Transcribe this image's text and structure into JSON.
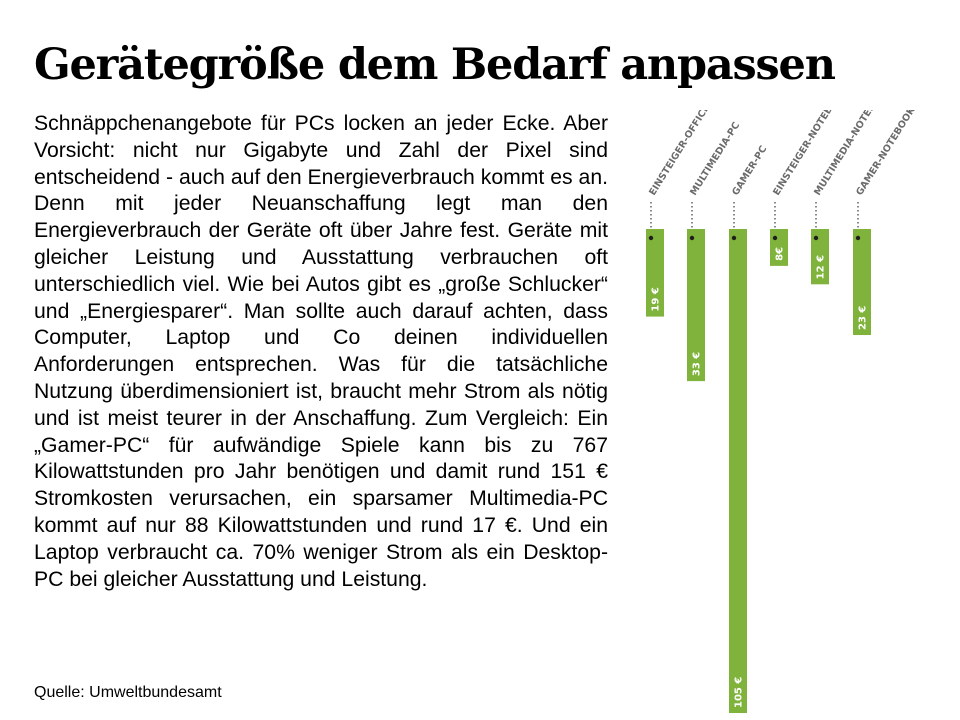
{
  "slide": {
    "title": "Gerätegröße dem Bedarf anpassen",
    "body": "Schnäppchenangebote für PCs locken an jeder Ecke. Aber Vorsicht: nicht nur Gigabyte und Zahl der Pixel sind entscheidend - auch auf den Energieverbrauch kommt es an. Denn mit jeder Neuanschaffung legt man den Energieverbrauch der Geräte oft über Jahre fest. Geräte mit gleicher Leistung und Ausstattung verbrauchen oft unterschiedlich viel. Wie bei Autos gibt es „große Schlucker“ und „Energiesparer“. Man sollte auch darauf achten, dass Computer, Laptop und Co deinen individuellen Anforderungen entsprechen. Was für die tatsächliche Nutzung überdimensioniert ist, braucht mehr Strom als nötig und ist meist teurer in der Anschaffung. Zum Vergleich: Ein „Gamer-PC“ für aufwändige Spiele kann bis zu 767 Kilowattstunden pro Jahr benötigen und damit rund 151 € Stromkosten verursachen, ein sparsamer Multimedia-PC kommt auf nur 88 Kilowattstunden und rund 17 €. Und ein Laptop verbraucht ca. 70% weniger Strom als ein Desktop-PC bei gleicher Ausstattung und Leistung.",
    "source": "Quelle: Umweltbundesamt"
  },
  "chart_data": {
    "type": "bar",
    "orientation": "vertical-down",
    "categories": [
      "EINSTEIGER-OFFICE-PC",
      "MULTIMEDIA-PC",
      "GAMER-PC",
      "EINSTEIGER-NOTEBOOK",
      "MULTIMEDIA-NOTEBOOK",
      "GAMER-NOTEBOOK"
    ],
    "values": [
      19,
      33,
      105,
      8,
      12,
      23
    ],
    "value_labels": [
      "19 €",
      "33 €",
      "105 €",
      "8€",
      "12 €",
      "23 €"
    ],
    "unit": "€",
    "bar_color": "#7fb33b",
    "grid": false,
    "legend": "none"
  }
}
